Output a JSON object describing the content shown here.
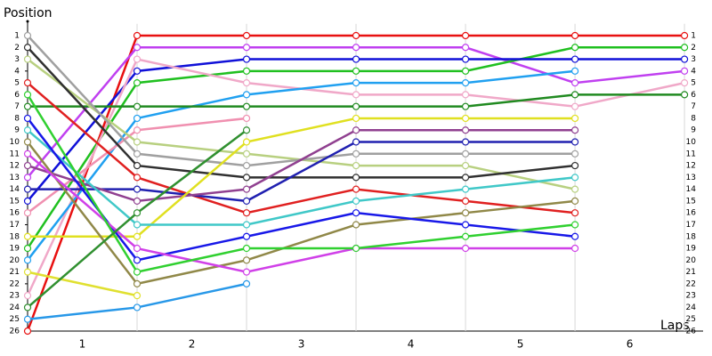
{
  "chart_data": {
    "type": "line",
    "y_label": "Position",
    "x_label": "Laps",
    "x": [
      0,
      1,
      2,
      3,
      4,
      5,
      6
    ],
    "xlim": [
      0,
      6.17
    ],
    "xticks": [
      {
        "value": 0.5,
        "label": "1"
      },
      {
        "value": 1.5,
        "label": "2"
      },
      {
        "value": 2.5,
        "label": "3"
      },
      {
        "value": 3.5,
        "label": "4"
      },
      {
        "value": 4.5,
        "label": "5"
      },
      {
        "value": 5.5,
        "label": "6"
      }
    ],
    "ylim": [
      0,
      26
    ],
    "y_inverted": true,
    "yticks": [
      1,
      2,
      3,
      4,
      5,
      6,
      7,
      8,
      9,
      10,
      11,
      12,
      13,
      14,
      15,
      16,
      17,
      18,
      19,
      20,
      21,
      22,
      23,
      24,
      25,
      26
    ],
    "grid": true,
    "series": [
      {
        "color": "#e81010",
        "values": [
          26,
          1,
          1,
          1,
          1,
          1,
          1
        ]
      },
      {
        "color": "#c040f0",
        "values": [
          13,
          2,
          2,
          2,
          2,
          5,
          4
        ]
      },
      {
        "color": "#20c020",
        "values": [
          19,
          5,
          4,
          4,
          4,
          2,
          2
        ]
      },
      {
        "color": "#1010d8",
        "values": [
          15,
          4,
          3,
          3,
          3,
          3,
          3
        ]
      },
      {
        "color": "#f0a8c8",
        "values": [
          23,
          3,
          5,
          6,
          6,
          7,
          5
        ]
      },
      {
        "color": "#20a0f0",
        "values": [
          20,
          8,
          6,
          5,
          5,
          4,
          null
        ]
      },
      {
        "color": "#208a20",
        "values": [
          7,
          7,
          7,
          7,
          7,
          6,
          6
        ]
      },
      {
        "color": "#f090b0",
        "values": [
          16,
          9,
          8,
          null,
          null,
          null,
          null
        ]
      },
      {
        "color": "#b8d080",
        "values": [
          3,
          10,
          11,
          12,
          12,
          14,
          null
        ]
      },
      {
        "color": "#a0a0a0",
        "values": [
          1,
          11,
          12,
          11,
          11,
          11,
          null
        ]
      },
      {
        "color": "#303030",
        "values": [
          2,
          12,
          13,
          13,
          13,
          12,
          null
        ]
      },
      {
        "color": "#e02020",
        "values": [
          5,
          13,
          16,
          14,
          15,
          16,
          null
        ]
      },
      {
        "color": "#2020b0",
        "values": [
          14,
          14,
          15,
          10,
          10,
          10,
          null
        ]
      },
      {
        "color": "#904090",
        "values": [
          12,
          15,
          14,
          9,
          9,
          9,
          null
        ]
      },
      {
        "color": "#e0e020",
        "values": [
          18,
          18,
          10,
          8,
          8,
          8,
          null
        ]
      },
      {
        "color": "#40c8c8",
        "values": [
          9,
          17,
          17,
          15,
          14,
          13,
          null
        ]
      },
      {
        "color": "#908848",
        "values": [
          10,
          22,
          20,
          17,
          16,
          15,
          null
        ]
      },
      {
        "color": "#1818e8",
        "values": [
          8,
          20,
          18,
          16,
          17,
          18,
          null
        ]
      },
      {
        "color": "#d040e8",
        "values": [
          11,
          19,
          21,
          19,
          19,
          19,
          null
        ]
      },
      {
        "color": "#30d030",
        "values": [
          6,
          21,
          19,
          19,
          18,
          17,
          null
        ]
      },
      {
        "color": "#e0e030",
        "values": [
          21,
          23,
          null,
          null,
          null,
          null,
          null
        ]
      },
      {
        "color": "#2898e8",
        "values": [
          25,
          24,
          22,
          null,
          null,
          null,
          null
        ]
      },
      {
        "color": "#309030",
        "values": [
          24,
          16,
          9,
          null,
          null,
          null,
          null
        ]
      }
    ]
  }
}
